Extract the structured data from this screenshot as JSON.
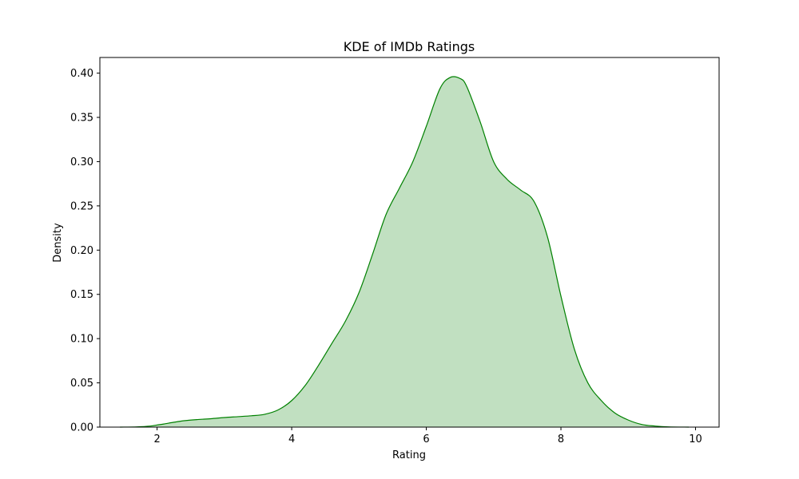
{
  "chart_data": {
    "type": "area",
    "title": "KDE of IMDb Ratings",
    "xlabel": "Rating",
    "ylabel": "Density",
    "xlim": [
      1.15,
      10.35
    ],
    "ylim": [
      0,
      0.4177
    ],
    "xticks": [
      2,
      4,
      6,
      8,
      10
    ],
    "xtick_labels": [
      "2",
      "4",
      "6",
      "8",
      "10"
    ],
    "yticks": [
      0,
      0.05,
      0.1,
      0.15,
      0.2,
      0.25,
      0.3,
      0.35,
      0.4
    ],
    "ytick_labels": [
      "0.00",
      "0.05",
      "0.10",
      "0.15",
      "0.20",
      "0.25",
      "0.30",
      "0.35",
      "0.40"
    ],
    "grid": false,
    "legend": "none",
    "colors": {
      "line": "#008000",
      "fill": "#c1e0c1"
    },
    "series": [
      {
        "x": [
          1.45,
          1.7,
          1.9,
          2.0,
          2.1,
          2.25,
          2.4,
          2.6,
          2.8,
          3.0,
          3.2,
          3.4,
          3.6,
          3.8,
          4.0,
          4.2,
          4.4,
          4.6,
          4.8,
          5.0,
          5.2,
          5.4,
          5.6,
          5.8,
          6.0,
          6.2,
          6.35,
          6.5,
          6.6,
          6.8,
          7.0,
          7.2,
          7.4,
          7.6,
          7.8,
          8.0,
          8.2,
          8.4,
          8.6,
          8.8,
          9.0,
          9.2,
          9.4,
          9.6,
          9.9
        ],
        "y": [
          0.0,
          0.0003,
          0.0012,
          0.0024,
          0.0035,
          0.0055,
          0.0072,
          0.0085,
          0.0095,
          0.0108,
          0.0118,
          0.0128,
          0.0145,
          0.0195,
          0.03,
          0.047,
          0.07,
          0.095,
          0.12,
          0.152,
          0.195,
          0.24,
          0.27,
          0.3,
          0.34,
          0.382,
          0.395,
          0.394,
          0.385,
          0.345,
          0.3,
          0.28,
          0.268,
          0.255,
          0.215,
          0.148,
          0.088,
          0.05,
          0.03,
          0.016,
          0.008,
          0.003,
          0.0012,
          0.0003,
          0.0
        ]
      }
    ]
  }
}
